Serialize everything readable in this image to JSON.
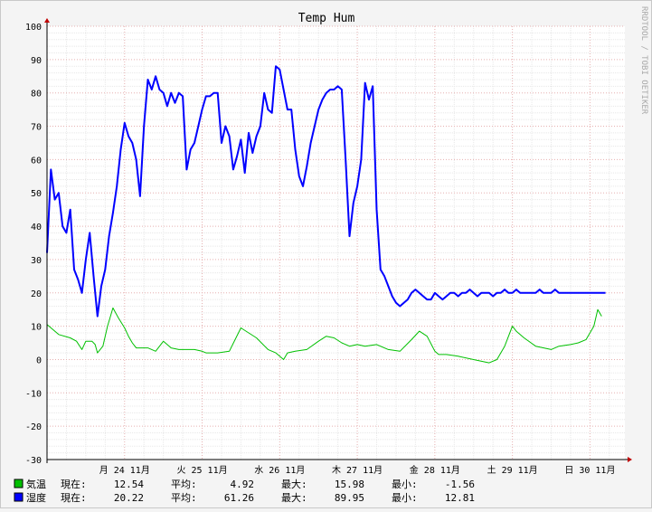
{
  "chart_data": {
    "type": "line",
    "title": "Temp Hum",
    "watermark": "RRDTOOL / TOBI OETIKER",
    "ylim": [
      -30,
      100
    ],
    "y_ticks": [
      100,
      90,
      80,
      70,
      60,
      50,
      40,
      30,
      20,
      10,
      0,
      -10,
      -20,
      -30
    ],
    "x_ticks": [
      {
        "label": "月 24 11月",
        "day": 1
      },
      {
        "label": "火 25 11月",
        "day": 2
      },
      {
        "label": "水 26 11月",
        "day": 3
      },
      {
        "label": "木 27 11月",
        "day": 4
      },
      {
        "label": "金 28 11月",
        "day": 5
      },
      {
        "label": "土 29 11月",
        "day": 6
      },
      {
        "label": "日 30 11月",
        "day": 7
      }
    ],
    "x_range_days": [
      0,
      7.45
    ],
    "grid": true,
    "colors": {
      "background": "#f4f4f4",
      "canvas": "#ffffff",
      "major_grid": "#e6b0b0",
      "minor_grid": "#e8e8e8",
      "axis": "#000000",
      "arrow": "#c00000"
    },
    "series": [
      {
        "name": "気温",
        "color": "#00c000",
        "x": [
          0.0,
          0.15,
          0.3,
          0.38,
          0.45,
          0.5,
          0.58,
          0.62,
          0.65,
          0.72,
          0.78,
          0.85,
          0.92,
          1.0,
          1.05,
          1.1,
          1.15,
          1.2,
          1.3,
          1.4,
          1.5,
          1.6,
          1.7,
          1.8,
          1.9,
          2.0,
          2.05,
          2.1,
          2.2,
          2.35,
          2.5,
          2.7,
          2.85,
          2.95,
          3.0,
          3.05,
          3.1,
          3.2,
          3.35,
          3.5,
          3.6,
          3.7,
          3.8,
          3.9,
          4.0,
          4.1,
          4.25,
          4.4,
          4.55,
          4.7,
          4.8,
          4.9,
          5.0,
          5.05,
          5.15,
          5.3,
          5.5,
          5.7,
          5.8,
          5.9,
          6.0,
          6.05,
          6.15,
          6.3,
          6.5,
          6.6,
          6.75,
          6.85,
          6.95,
          7.05,
          7.1,
          7.15
        ],
        "values": [
          10.5,
          7.5,
          6.5,
          5.5,
          3,
          5.5,
          5.5,
          4.5,
          2,
          4,
          10,
          15.5,
          12.5,
          9.5,
          7,
          5,
          3.5,
          3.5,
          3.5,
          2.5,
          5.5,
          3.5,
          3,
          3,
          3,
          2.5,
          2,
          2,
          2,
          2.5,
          9.5,
          6.5,
          3,
          2,
          1,
          0,
          2,
          2.5,
          3,
          5.5,
          7,
          6.5,
          5,
          4,
          4.5,
          4,
          4.5,
          3,
          2.5,
          6,
          8.5,
          7,
          2.5,
          1.5,
          1.5,
          1,
          0,
          -1,
          0,
          4,
          10,
          8.5,
          6.5,
          4,
          3,
          4,
          4.5,
          5,
          6,
          10,
          15,
          13
        ],
        "current": "12.54",
        "average": "4.92",
        "maximum": "15.98",
        "minimum": "-1.56"
      },
      {
        "name": "湿度",
        "color": "#0000ff",
        "x": [
          0.0,
          0.05,
          0.1,
          0.15,
          0.2,
          0.25,
          0.3,
          0.35,
          0.4,
          0.45,
          0.5,
          0.55,
          0.6,
          0.65,
          0.7,
          0.75,
          0.8,
          0.85,
          0.9,
          0.95,
          1.0,
          1.05,
          1.1,
          1.15,
          1.2,
          1.25,
          1.3,
          1.35,
          1.4,
          1.45,
          1.5,
          1.55,
          1.6,
          1.65,
          1.7,
          1.75,
          1.8,
          1.85,
          1.9,
          1.95,
          2.0,
          2.05,
          2.1,
          2.15,
          2.2,
          2.25,
          2.3,
          2.35,
          2.4,
          2.45,
          2.5,
          2.55,
          2.6,
          2.65,
          2.7,
          2.75,
          2.8,
          2.85,
          2.9,
          2.95,
          3.0,
          3.05,
          3.1,
          3.15,
          3.2,
          3.25,
          3.3,
          3.35,
          3.4,
          3.45,
          3.5,
          3.55,
          3.6,
          3.65,
          3.7,
          3.75,
          3.8,
          3.85,
          3.9,
          3.95,
          4.0,
          4.05,
          4.1,
          4.15,
          4.2,
          4.25,
          4.3,
          4.35,
          4.4,
          4.45,
          4.5,
          4.55,
          4.6,
          4.65,
          4.7,
          4.75,
          4.8,
          4.85,
          4.9,
          4.95,
          5.0,
          5.05,
          5.1,
          5.15,
          5.2,
          5.25,
          5.3,
          5.35,
          5.4,
          5.45,
          5.5,
          5.55,
          5.6,
          5.65,
          5.7,
          5.75,
          5.8,
          5.85,
          5.9,
          5.95,
          6.0,
          6.05,
          6.1,
          6.15,
          6.2,
          6.25,
          6.3,
          6.35,
          6.4,
          6.45,
          6.5,
          6.55,
          6.6,
          6.65,
          6.7,
          6.75,
          6.8,
          6.85,
          6.9,
          6.95,
          7.0,
          7.05,
          7.1,
          7.15,
          7.2
        ],
        "values": [
          32,
          57,
          48,
          50,
          40,
          38,
          45,
          27,
          24,
          20,
          30,
          38,
          25,
          13,
          22,
          27,
          37,
          44,
          52,
          63,
          71,
          67,
          65,
          60,
          49,
          70,
          84,
          81,
          85,
          81,
          80,
          76,
          80,
          77,
          80,
          79,
          57,
          63,
          65,
          70,
          75,
          79,
          79,
          80,
          80,
          65,
          70,
          67,
          57,
          61,
          66,
          56,
          68,
          62,
          67,
          70,
          80,
          75,
          74,
          88,
          87,
          81,
          75,
          75,
          63,
          55,
          52,
          58,
          65,
          70,
          75,
          78,
          80,
          81,
          81,
          82,
          81,
          60,
          37,
          47,
          52,
          60,
          83,
          78,
          82,
          45,
          27,
          25,
          22,
          19,
          17,
          16,
          17,
          18,
          20,
          21,
          20,
          19,
          18,
          18,
          20,
          19,
          18,
          19,
          20,
          20,
          19,
          20,
          20,
          21,
          20,
          19,
          20,
          20,
          20,
          19,
          20,
          20,
          21,
          20,
          20,
          21,
          20,
          20,
          20,
          20,
          20,
          21,
          20,
          20,
          20,
          21,
          20,
          20,
          20,
          20,
          20,
          20,
          20,
          20,
          20,
          20,
          20,
          20,
          20
        ],
        "current": "20.22",
        "average": "61.26",
        "maximum": "89.95",
        "minimum": "12.81"
      }
    ]
  },
  "legend": {
    "now_label": "現在:",
    "avg_label": "平均:",
    "max_label": "最大:",
    "min_label": "最小:"
  }
}
